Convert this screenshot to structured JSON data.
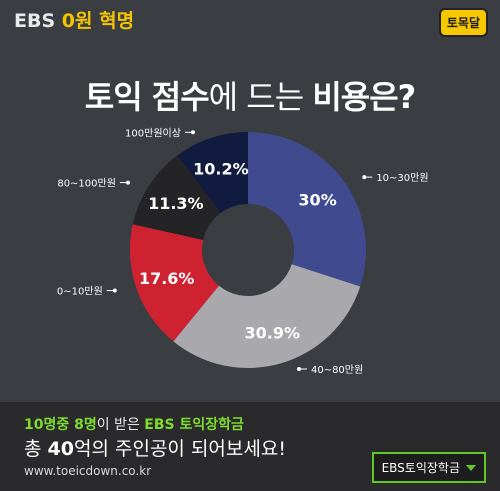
{
  "header": {
    "brand_prefix": "EBS ",
    "brand_zero": "0",
    "brand_suffix": "원 혁명",
    "badge": "토목달"
  },
  "chart_data": {
    "type": "pie",
    "title_bold_1": "토익 점수",
    "title_light": "에 드는 ",
    "title_bold_2": "비용은?",
    "slices": [
      {
        "category": "10~30만원",
        "value": 30,
        "label": "30%",
        "color": "#3f4a8f"
      },
      {
        "category": "40~80만원",
        "value": 30.9,
        "label": "30.9%",
        "color": "#a9a9ad"
      },
      {
        "category": "0~10만원",
        "value": 17.6,
        "label": "17.6%",
        "color": "#cf2230"
      },
      {
        "category": "80~100만원",
        "value": 11.3,
        "label": "11.3%",
        "color": "#242426"
      },
      {
        "category": "100만원이상",
        "value": 10.2,
        "label": "10.2%",
        "color": "#111b3f"
      }
    ]
  },
  "footer": {
    "line1_green_a": "10명중 8명",
    "line1_white": "이 받은 ",
    "line1_green_b": "EBS 토익장학금",
    "line2_a": "총 ",
    "line2_bold": "40",
    "line2_b": "억의 주인공이 되어보세요!",
    "url": "www.toeicdown.co.kr",
    "cta_label": "EBS토익장학금"
  }
}
